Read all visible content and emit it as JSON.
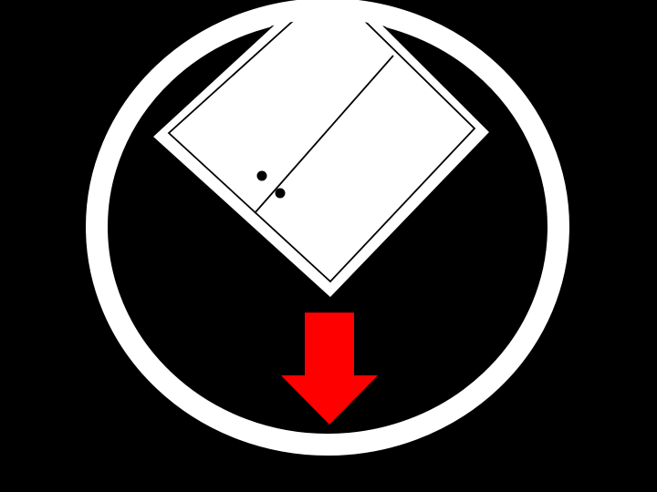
{
  "colors": {
    "background": "#000000",
    "ring": "#ffffff",
    "door": "#ffffff",
    "door_outline": "#000000",
    "arrow": "#ff0000"
  },
  "icons": {
    "ring": "circle-ring-icon",
    "door": "tilted-double-door-icon",
    "arrow": "down-arrow-icon"
  }
}
